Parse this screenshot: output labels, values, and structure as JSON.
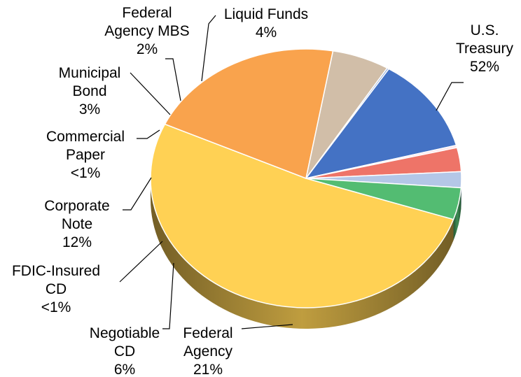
{
  "chart_data": {
    "type": "pie",
    "title": "",
    "style": "3d-pie",
    "slices": [
      {
        "label": [
          "U.S.",
          "Treasury"
        ],
        "value": 52,
        "value_label": "52%",
        "color": "#FFD154"
      },
      {
        "label": [
          "Federal",
          "Agency"
        ],
        "value": 21,
        "value_label": "21%",
        "color": "#F9A34D"
      },
      {
        "label": [
          "Negotiable",
          "CD"
        ],
        "value": 6,
        "value_label": "6%",
        "color": "#D1BEA8"
      },
      {
        "label": [
          "FDIC-Insured",
          "CD"
        ],
        "value": 0.2,
        "value_label": "<1%",
        "color": "#8EA9DB"
      },
      {
        "label": [
          "Corporate",
          "Note"
        ],
        "value": 12,
        "value_label": "12%",
        "color": "#4472C4"
      },
      {
        "label": [
          "Commercial",
          "Paper"
        ],
        "value": 0.3,
        "value_label": "<1%",
        "color": "#FCE4EC"
      },
      {
        "label": [
          "Municipal",
          "Bond"
        ],
        "value": 3,
        "value_label": "3%",
        "color": "#EE7468"
      },
      {
        "label": [
          "Federal",
          "Agency MBS"
        ],
        "value": 2,
        "value_label": "2%",
        "color": "#B4C7E7"
      },
      {
        "label": [
          "Liquid Funds"
        ],
        "value": 4,
        "value_label": "4%",
        "color": "#53BC72"
      }
    ]
  }
}
